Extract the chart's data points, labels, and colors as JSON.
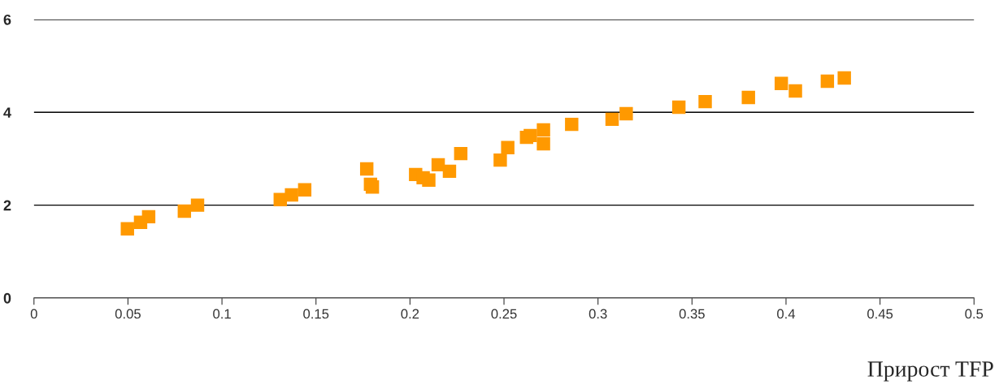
{
  "chart_data": {
    "type": "scatter",
    "xlabel": "Прирост TFP",
    "x": [
      0.0497,
      0.0567,
      0.061,
      0.08,
      0.087,
      0.131,
      0.137,
      0.144,
      0.177,
      0.179,
      0.18,
      0.203,
      0.207,
      0.21,
      0.215,
      0.221,
      0.227,
      0.248,
      0.252,
      0.262,
      0.264,
      0.271,
      0.271,
      0.286,
      0.3075,
      0.315,
      0.343,
      0.357,
      0.38,
      0.3975,
      0.405,
      0.422,
      0.431
    ],
    "series": [
      {
        "color": "#ff9900",
        "values": [
          1.49,
          1.63,
          1.75,
          1.87,
          2.0,
          2.12,
          2.22,
          2.33,
          2.78,
          2.45,
          2.39,
          2.66,
          2.59,
          2.54,
          2.87,
          2.73,
          3.11,
          2.97,
          3.24,
          3.46,
          3.5,
          3.62,
          3.32,
          3.74,
          3.85,
          3.97,
          4.11,
          4.23,
          4.32,
          4.62,
          4.46,
          4.67,
          4.74
        ]
      }
    ],
    "xlim": [
      0,
      0.5
    ],
    "xticks": [
      0,
      0.05,
      0.1,
      0.15,
      0.2,
      0.25,
      0.3,
      0.35,
      0.4,
      0.45,
      0.5
    ],
    "ylim": [
      0,
      6
    ],
    "yticks": [
      0,
      2,
      4,
      6
    ],
    "grid": "y",
    "marker": "square",
    "legend": false
  }
}
